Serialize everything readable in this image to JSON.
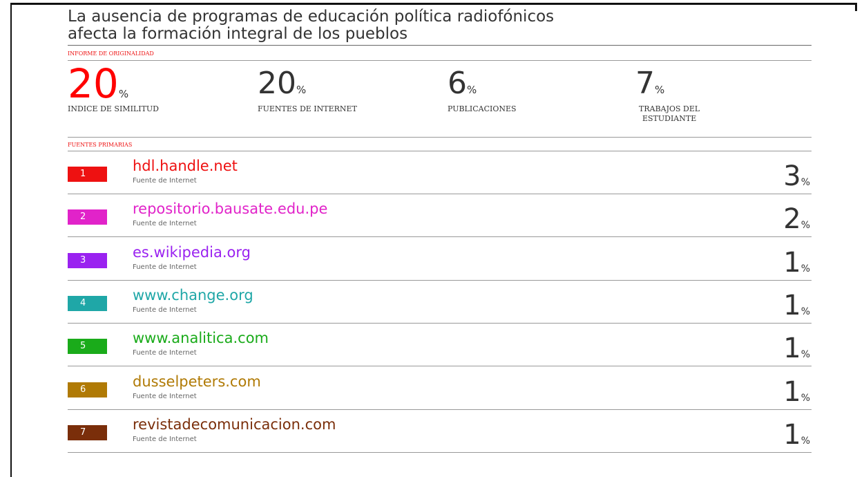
{
  "header": {
    "title_lines": [
      "La ausencia de programas de educación política radiofónicos",
      "afecta la formación integral de los pueblos"
    ]
  },
  "report": {
    "section_label": "INFORME DE ORIGINALIDAD",
    "stats": [
      {
        "value": 20,
        "unit": "%",
        "label_lines": [
          "INDICE DE SIMILITUD"
        ],
        "color": "#ff0000"
      },
      {
        "value": 20,
        "unit": "%",
        "label_lines": [
          "FUENTES DE INTERNET"
        ],
        "color": "#333333"
      },
      {
        "value": 6,
        "unit": "%",
        "label_lines": [
          "PUBLICACIONES"
        ],
        "color": "#333333"
      },
      {
        "value": 7,
        "unit": "%",
        "label_lines": [
          "TRABAJOS DEL",
          "ESTUDIANTE"
        ],
        "color": "#333333"
      }
    ]
  },
  "sources": {
    "section_label": "FUENTES PRIMARIAS",
    "rows": [
      {
        "rank": 1,
        "name": "hdl.handle.net",
        "type": "Fuente de Internet",
        "percent": 3,
        "unit": "%",
        "color": "#ee1111"
      },
      {
        "rank": 2,
        "name": "repositorio.bausate.edu.pe",
        "type": "Fuente de Internet",
        "percent": 2,
        "unit": "%",
        "color": "#e123c9"
      },
      {
        "rank": 3,
        "name": "es.wikipedia.org",
        "type": "Fuente de Internet",
        "percent": 1,
        "unit": "%",
        "color": "#9a22f0"
      },
      {
        "rank": 4,
        "name": "www.change.org",
        "type": "Fuente de Internet",
        "percent": 1,
        "unit": "%",
        "color": "#1fa7a7"
      },
      {
        "rank": 5,
        "name": "www.analitica.com",
        "type": "Fuente de Internet",
        "percent": 1,
        "unit": "%",
        "color": "#1aab1a"
      },
      {
        "rank": 6,
        "name": "dusselpeters.com",
        "type": "Fuente de Internet",
        "percent": 1,
        "unit": "%",
        "color": "#b07a05"
      },
      {
        "rank": 7,
        "name": "revistadecomunicacion.com",
        "type": "Fuente de Internet",
        "percent": 1,
        "unit": "%",
        "color": "#7a2e0a"
      }
    ]
  }
}
